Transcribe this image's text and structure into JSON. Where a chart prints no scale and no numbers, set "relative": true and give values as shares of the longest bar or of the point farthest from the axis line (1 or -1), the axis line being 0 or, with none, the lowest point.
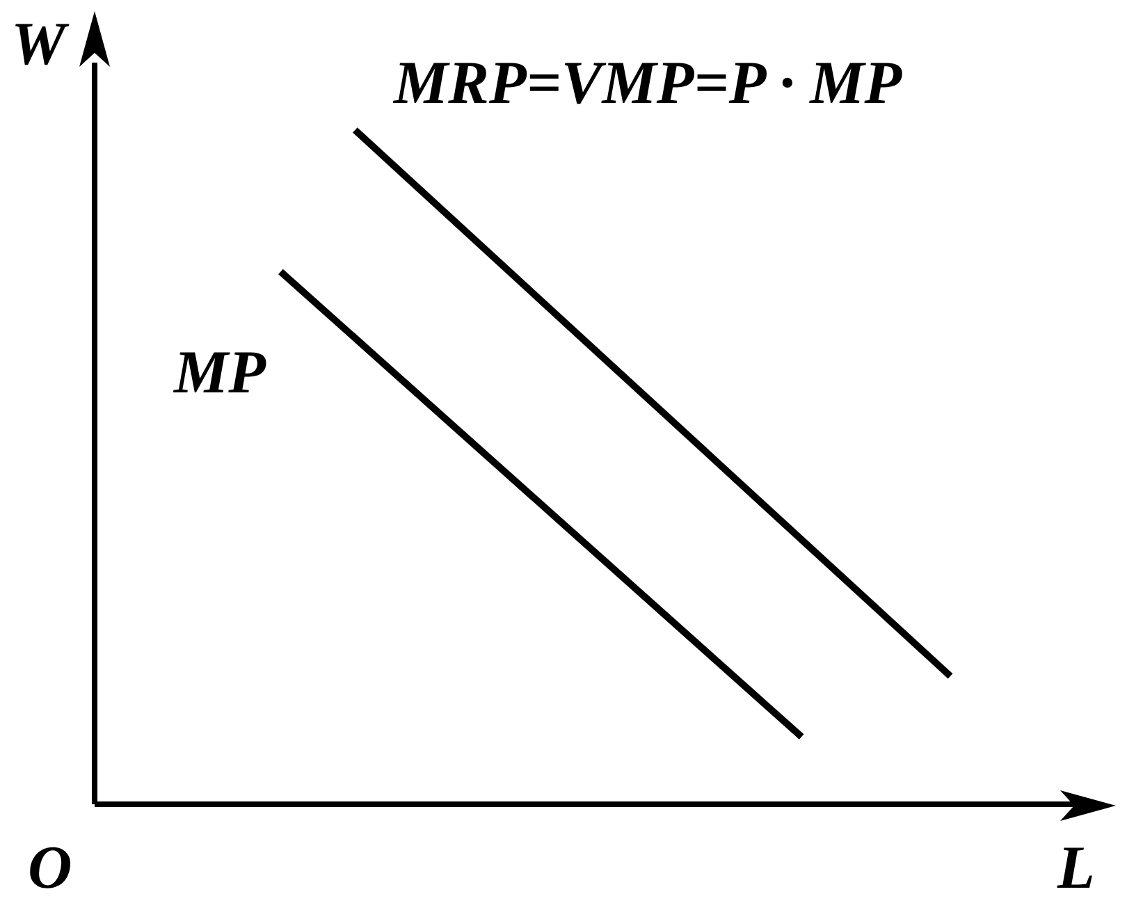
{
  "chart_data": {
    "type": "line",
    "relative": true,
    "xlabel": "L",
    "ylabel": "W",
    "annotations": [
      "O"
    ],
    "legend": false,
    "tick_labels": false,
    "grid": false,
    "marker": "none",
    "line_style": "solid",
    "categories": [
      null,
      null,
      null,
      null,
      null,
      null,
      null,
      null,
      null,
      null,
      null,
      null,
      null,
      null,
      null,
      null,
      null,
      null,
      null,
      null,
      null,
      null,
      null,
      null,
      null,
      null,
      null,
      null
    ],
    "series": [
      {
        "name": "MP",
        "color": "#000000",
        "values": [
          null,
          null,
          null,
          null,
          null,
          0.79,
          null,
          null,
          null,
          null,
          null,
          null,
          null,
          null,
          null,
          null,
          null,
          null,
          null,
          0.1,
          null,
          null,
          null,
          null,
          null,
          null,
          null,
          null
        ]
      },
      {
        "name": "MRP=VMP=P · MP",
        "color": "#000000",
        "values": [
          null,
          null,
          null,
          null,
          null,
          null,
          null,
          1,
          null,
          null,
          null,
          null,
          null,
          null,
          null,
          null,
          null,
          null,
          null,
          null,
          null,
          null,
          null,
          0.19,
          null,
          null,
          null,
          null
        ]
      }
    ]
  }
}
